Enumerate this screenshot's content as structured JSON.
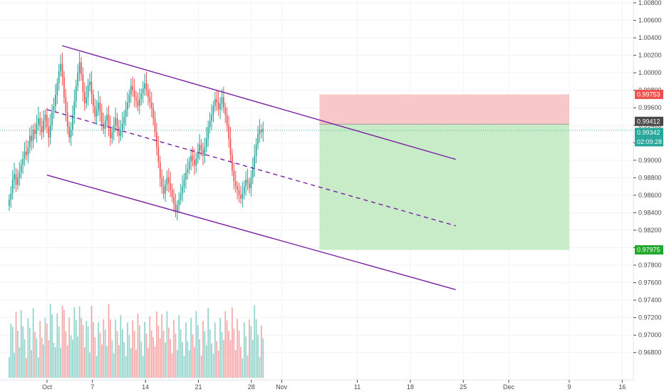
{
  "chart_data": {
    "type": "candlestick",
    "title": "",
    "xlabel": "",
    "ylabel": "",
    "ylim": [
      0.967,
      1.008
    ],
    "grid": true,
    "colors": {
      "up": "#26a69a",
      "down": "#ef5350",
      "vol_up": "#8fd3cb",
      "vol_down": "#f4a6a6",
      "channel": "#7b1fa2",
      "stop_zone": "#f8c8c8",
      "target_zone": "#c8ebc8",
      "axis_text": "#4a4a4a"
    },
    "y_ticks": [
      "1.00800",
      "1.00600",
      "1.00400",
      "1.00200",
      "1.00000",
      "0.99800",
      "0.99600",
      "0.99400",
      "0.99200",
      "0.99000",
      "0.98800",
      "0.98600",
      "0.98400",
      "0.98200",
      "0.98000",
      "0.97800",
      "0.97600",
      "0.97400",
      "0.97200",
      "0.97000",
      "0.96800"
    ],
    "x_ticks": [
      "Oct",
      "7",
      "14",
      "21",
      "28",
      "Nov",
      "11",
      "18",
      "25",
      "Dec",
      "9",
      "16"
    ],
    "candles": {
      "start": "2019-09-26",
      "bars_per_day": 6,
      "close": [
        0.9855,
        0.9862,
        0.9878,
        0.9884,
        0.9872,
        0.988,
        0.9886,
        0.9895,
        0.9902,
        0.991,
        0.9906,
        0.9915,
        0.9928,
        0.9922,
        0.9935,
        0.993,
        0.9941,
        0.9948,
        0.9939,
        0.9932,
        0.9945,
        0.9952,
        0.9938,
        0.9926,
        0.994,
        0.9957,
        0.9962,
        0.9975,
        0.9988,
        1.0002,
        1.001,
        0.9995,
        0.9972,
        0.9955,
        0.9938,
        0.9926,
        0.9935,
        0.9952,
        0.9968,
        0.9985,
        1.0,
        1.0012,
        0.9998,
        0.9978,
        0.9965,
        0.9972,
        0.9986,
        0.999,
        0.9975,
        0.9962,
        0.995,
        0.9958,
        0.9966,
        0.9955,
        0.9942,
        0.9936,
        0.9945,
        0.9952,
        0.9938,
        0.9925,
        0.9932,
        0.994,
        0.9948,
        0.9938,
        0.9928,
        0.9935,
        0.9942,
        0.995,
        0.9958,
        0.9966,
        0.9975,
        0.9985,
        0.998,
        0.9972,
        0.9968,
        0.9962,
        0.997,
        0.9976,
        0.9982,
        0.9988,
        0.998,
        0.9972,
        0.9966,
        0.996,
        0.9948,
        0.9932,
        0.9915,
        0.9898,
        0.988,
        0.987,
        0.9862,
        0.9872,
        0.988,
        0.9874,
        0.9866,
        0.9858,
        0.985,
        0.9842,
        0.9848,
        0.9855,
        0.9862,
        0.987,
        0.9878,
        0.9886,
        0.989,
        0.9898,
        0.9905,
        0.99,
        0.9894,
        0.9902,
        0.991,
        0.9918,
        0.9912,
        0.9905,
        0.9915,
        0.9925,
        0.9938,
        0.9945,
        0.9952,
        0.9962,
        0.997,
        0.9966,
        0.9958,
        0.9965,
        0.9972,
        0.996,
        0.9952,
        0.994,
        0.9925,
        0.9906,
        0.9888,
        0.9876,
        0.987,
        0.9866,
        0.986,
        0.9856,
        0.9862,
        0.987,
        0.9878,
        0.9874,
        0.9868,
        0.988,
        0.9892,
        0.9905,
        0.9918,
        0.993,
        0.9935,
        0.9932,
        0.9936
      ],
      "open": [
        0.9848,
        0.9855,
        0.9862,
        0.9878,
        0.9884,
        0.9872,
        0.988,
        0.9886,
        0.9895,
        0.9902,
        0.991,
        0.9906,
        0.9915,
        0.9928,
        0.9922,
        0.9935,
        0.993,
        0.9941,
        0.9948,
        0.9939,
        0.9932,
        0.9945,
        0.9952,
        0.9938,
        0.9926,
        0.994,
        0.9957,
        0.9962,
        0.9975,
        0.9988,
        1.0002,
        1.001,
        0.9995,
        0.9972,
        0.9955,
        0.9938,
        0.9926,
        0.9935,
        0.9952,
        0.9968,
        0.9985,
        1.0,
        1.0012,
        0.9998,
        0.9978,
        0.9965,
        0.9972,
        0.9986,
        0.999,
        0.9975,
        0.9962,
        0.995,
        0.9958,
        0.9966,
        0.9955,
        0.9942,
        0.9936,
        0.9945,
        0.9952,
        0.9938,
        0.9925,
        0.9932,
        0.994,
        0.9948,
        0.9938,
        0.9928,
        0.9935,
        0.9942,
        0.995,
        0.9958,
        0.9966,
        0.9975,
        0.9985,
        0.998,
        0.9972,
        0.9968,
        0.9962,
        0.997,
        0.9976,
        0.9982,
        0.9988,
        0.998,
        0.9972,
        0.9966,
        0.996,
        0.9948,
        0.9932,
        0.9915,
        0.9898,
        0.988,
        0.987,
        0.9862,
        0.9872,
        0.988,
        0.9874,
        0.9866,
        0.9858,
        0.985,
        0.9842,
        0.9848,
        0.9855,
        0.9862,
        0.987,
        0.9878,
        0.9886,
        0.989,
        0.9898,
        0.9905,
        0.99,
        0.9894,
        0.9902,
        0.991,
        0.9918,
        0.9912,
        0.9905,
        0.9915,
        0.9925,
        0.9938,
        0.9945,
        0.9952,
        0.9962,
        0.997,
        0.9966,
        0.9958,
        0.9965,
        0.9972,
        0.996,
        0.9952,
        0.994,
        0.9925,
        0.9906,
        0.9888,
        0.9876,
        0.987,
        0.9866,
        0.986,
        0.9856,
        0.9862,
        0.987,
        0.9878,
        0.9874,
        0.9868,
        0.988,
        0.9892,
        0.9905,
        0.9918,
        0.993,
        0.9935,
        0.9932
      ]
    },
    "channel": {
      "upper": [
        {
          "x": "2019-10-03",
          "y": 1.0031
        },
        {
          "x": "2019-11-24",
          "y": 0.9901
        }
      ],
      "middle": [
        {
          "x": "2019-10-01",
          "y": 0.9958
        },
        {
          "x": "2019-11-24",
          "y": 0.9825
        }
      ],
      "lower": [
        {
          "x": "2019-10-01",
          "y": 0.9883
        },
        {
          "x": "2019-11-24",
          "y": 0.9752
        }
      ]
    },
    "position": {
      "type": "short",
      "entry": 0.99412,
      "stop": 0.99753,
      "target": 0.97975,
      "from": "2019-11-06",
      "to": "2019-12-09"
    },
    "price_labels": [
      {
        "value": "0.99753",
        "color": "#ef5350"
      },
      {
        "value": "0.99412",
        "color": "#4a4a4a"
      },
      {
        "value": "0.99342",
        "color": "#26a69a"
      },
      {
        "value": "02:09:28",
        "color": "#26a69a"
      },
      {
        "value": "0.97975",
        "color": "#22a82a"
      }
    ],
    "volume": {
      "ylim": [
        0,
        2400
      ]
    }
  }
}
